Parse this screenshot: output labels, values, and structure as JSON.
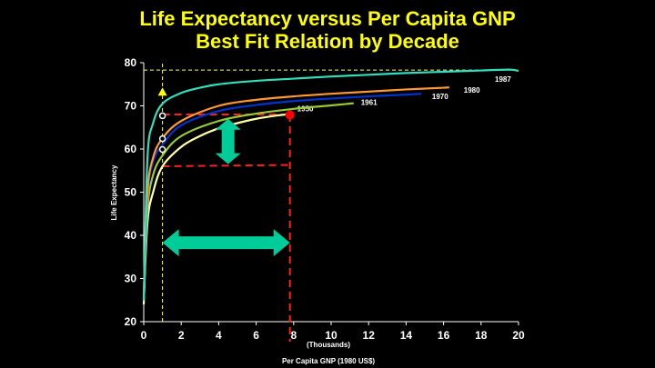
{
  "title_line1": "Life Expectancy versus Per Capita GNP",
  "title_line2": "Best Fit Relation by Decade",
  "chart_data": {
    "type": "line",
    "xlabel": "Per Capita GNP (1980 US$)",
    "xunit_note": "(Thousands)",
    "ylabel": "Life Expectancy",
    "xlim": [
      0,
      20
    ],
    "ylim": [
      20,
      80
    ],
    "xticks": [
      "0",
      "2",
      "4",
      "6",
      "8",
      "10",
      "12",
      "14",
      "16",
      "18",
      "20"
    ],
    "yticks": [
      "20",
      "30",
      "40",
      "50",
      "60",
      "70",
      "80"
    ],
    "series": [
      {
        "name": "1950",
        "color": "#ffffaa",
        "x": [
          0,
          0.2,
          0.5,
          1,
          2,
          3,
          4,
          5,
          6,
          7,
          7.8
        ],
        "y": [
          24,
          43,
          50,
          56,
          60.5,
          63,
          64.8,
          66,
          67,
          67.7,
          68.1
        ]
      },
      {
        "name": "1961",
        "color": "#99cc33",
        "x": [
          0,
          0.2,
          0.5,
          1,
          2,
          4,
          6,
          8,
          10,
          11.2
        ],
        "y": [
          25,
          46,
          54,
          58.5,
          63,
          66.5,
          68.2,
          69.3,
          70.1,
          70.6
        ]
      },
      {
        "name": "1970",
        "color": "#0033cc",
        "x": [
          0,
          0.2,
          0.5,
          1,
          2,
          4,
          6,
          8,
          10,
          12,
          14,
          14.8
        ],
        "y": [
          25,
          49,
          57,
          61,
          65.5,
          68.8,
          70.2,
          71.1,
          71.7,
          72.2,
          72.6,
          72.8
        ]
      },
      {
        "name": "1980",
        "color": "#ff9933",
        "x": [
          0,
          0.2,
          0.5,
          1,
          2,
          4,
          6,
          8,
          10,
          12,
          14,
          16,
          16.3
        ],
        "y": [
          26,
          50,
          58,
          62.5,
          66.5,
          70,
          71.4,
          72.2,
          72.8,
          73.3,
          73.8,
          74.2,
          74.3
        ]
      },
      {
        "name": "1987",
        "color": "#33ddbb",
        "x": [
          0,
          0.2,
          0.5,
          1,
          2,
          3,
          4,
          6,
          8,
          10,
          12,
          14,
          16,
          18,
          19.5,
          20
        ],
        "y": [
          25,
          58,
          66,
          70.5,
          73,
          74.2,
          75,
          75.8,
          76.3,
          76.8,
          77.2,
          77.6,
          77.9,
          78.2,
          78.4,
          78.1
        ]
      }
    ],
    "annotations": {
      "reference_x": 1,
      "reference_y": 78.3,
      "h_dashed_y": [
        68,
        56
      ],
      "v_dashed_x": 7.8,
      "triangle_point": {
        "x": 1,
        "y": 73.2
      },
      "hollow_points": [
        {
          "x": 1,
          "y": 67.7
        },
        {
          "x": 1,
          "y": 62.4
        },
        {
          "x": 1,
          "y": 59.9
        }
      ],
      "marker_1950": {
        "x": 7.8,
        "y": 67.9
      },
      "v_arrow": {
        "x": 4.5,
        "y_from": 56.5,
        "y_to": 67
      },
      "h_arrow": {
        "y": 38.3,
        "x_from": 1,
        "x_to": 7.8
      }
    },
    "colors": {
      "title": "#ffff00",
      "arrow": "#00cc99",
      "dashed_red": "#ff2020",
      "dashed_yellow": "#ffff66",
      "marker": "#ff0000"
    }
  }
}
